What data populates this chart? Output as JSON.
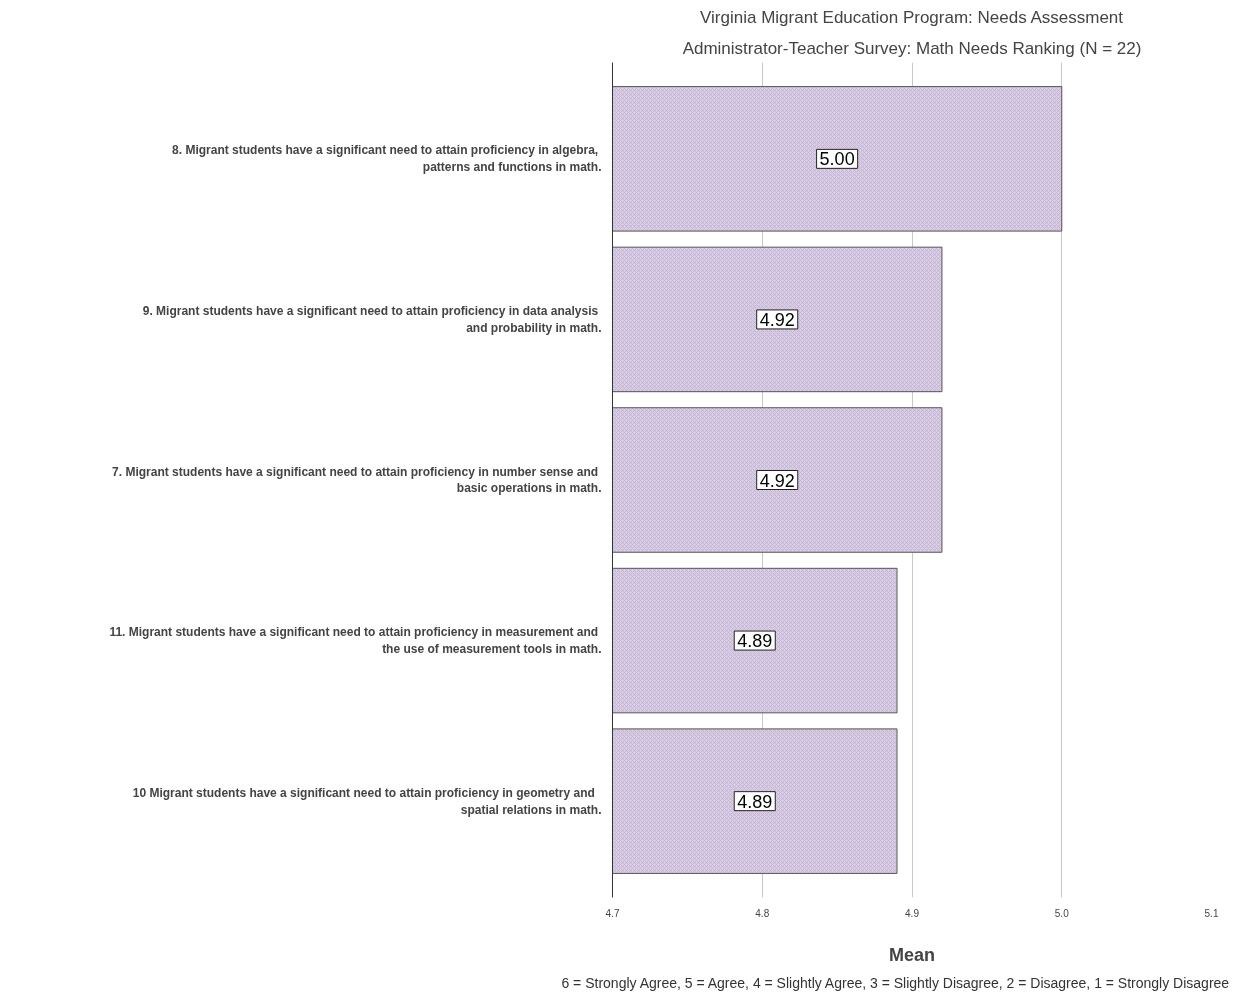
{
  "chart_data": {
    "type": "bar",
    "orientation": "horizontal",
    "title": "Virginia Migrant Education Program: Needs Assessment",
    "subtitle": "Administrator-Teacher Survey: Math Needs Ranking (N = 22)",
    "xlabel": "Mean",
    "categories": [
      "8.  Migrant students have a significant need to attain proficiency in algebra, patterns and functions in math.",
      "9.  Migrant students have a significant need to attain proficiency in data analysis and probability in math.",
      "7.  Migrant students have a significant need to attain proficiency in number sense and basic operations in math.",
      "11.  Migrant students have a significant need to attain proficiency in measurement and the use of measurement tools in math.",
      "10   Migrant students have a significant need to attain proficiency in geometry and spatial relations in math."
    ],
    "values": [
      5.0,
      4.92,
      4.92,
      4.89,
      4.89
    ],
    "value_labels": [
      "5.00",
      "4.92",
      "4.92",
      "4.89",
      "4.89"
    ],
    "color": "#d9cde6",
    "xlim": [
      4.7,
      5.1
    ],
    "xticks": [
      4.7,
      4.8,
      4.9,
      {
        "value": 5,
        "label": "5.0"
      },
      5.1
    ],
    "grid": "x",
    "annotations": [
      "6 = Strongly Agree,  5 = Agree,   4 = Slightly Agree,  3 = Slightly Disagree,   2 = Disagree,   1 = Strongly Disagree"
    ]
  }
}
